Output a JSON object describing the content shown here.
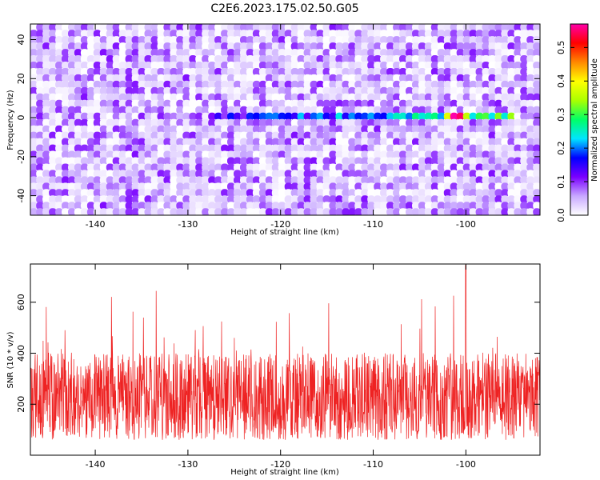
{
  "title": "C2E6.2023.175.02.50.G05",
  "chart_data": [
    {
      "type": "heatmap",
      "xlabel": "Height of straight line (km)",
      "ylabel": "Frequency (Hz)",
      "xlim": [
        -147,
        -92
      ],
      "ylim": [
        -50,
        48
      ],
      "x_ticks": [
        -140,
        -130,
        -120,
        -110,
        -100
      ],
      "y_ticks": [
        -40,
        -20,
        0,
        20,
        40
      ],
      "colorbar": {
        "label": "Normalized spectral amplitude",
        "range": [
          0.0,
          0.57
        ],
        "ticks": [
          0.0,
          0.1,
          0.2,
          0.3,
          0.4,
          0.5
        ],
        "colormap": [
          "#ffffff",
          "#c8a8ff",
          "#7a00ff",
          "#0000ff",
          "#00e5ff",
          "#00ff66",
          "#aaff00",
          "#ffff00",
          "#ff8800",
          "#ff0000",
          "#ff00aa"
        ]
      },
      "features": [
        {
          "x_range": [
            -128,
            -95
          ],
          "frequency": 1,
          "peak_amplitude": 0.57,
          "peak_x": -101
        }
      ]
    },
    {
      "type": "line",
      "xlabel": "Height of straight line (km)",
      "ylabel": "SNR (10 * v/v)",
      "xlim": [
        -147,
        -92
      ],
      "ylim": [
        0,
        750
      ],
      "x_ticks": [
        -140,
        -130,
        -120,
        -110,
        -100
      ],
      "y_ticks": [
        200,
        400,
        600
      ],
      "line_color": "#ee2222",
      "series_description": "noisy SNR trace, median about 220, mostly 50-450, peaks near 700",
      "peak": {
        "x": -100,
        "y": 745
      }
    }
  ]
}
